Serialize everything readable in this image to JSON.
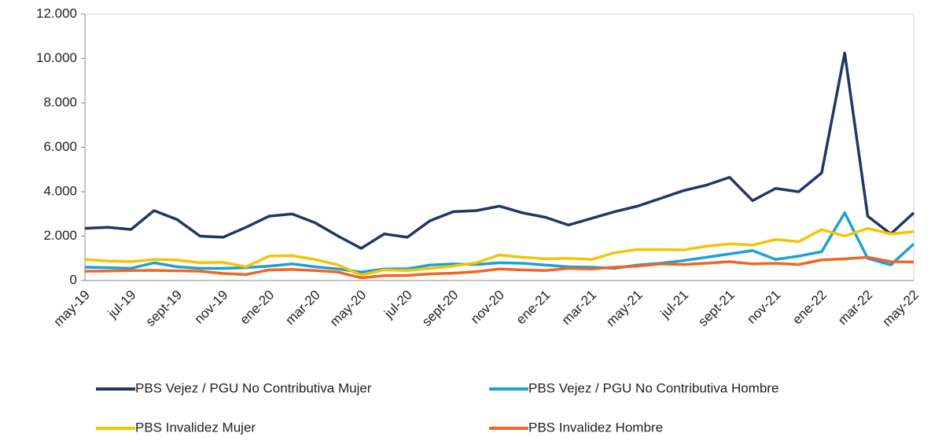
{
  "chart_data": {
    "type": "line",
    "categories": [
      "may-19",
      null,
      "jul-19",
      null,
      "sept-19",
      null,
      "nov-19",
      null,
      "ene-20",
      null,
      "mar-20",
      null,
      "may-20",
      null,
      "jul-20",
      null,
      "sept-20",
      null,
      "nov-20",
      null,
      "ene-21",
      null,
      "mar-21",
      null,
      "may-21",
      null,
      "jul-21",
      null,
      "sept-21",
      null,
      "nov-21",
      null,
      "ene-22",
      null,
      "mar-22",
      null,
      "may-22"
    ],
    "series": [
      {
        "name": "PBS Vejez / PGU No Contributiva Mujer",
        "color": "#1f3864",
        "values": [
          2350,
          2400,
          2300,
          3150,
          2750,
          2000,
          1950,
          2400,
          2900,
          3000,
          2600,
          2000,
          1450,
          2100,
          1950,
          2700,
          3100,
          3150,
          3350,
          3050,
          2850,
          2500,
          2800,
          3100,
          3350,
          3700,
          4050,
          4300,
          4650,
          3600,
          4150,
          4000,
          4850,
          10250,
          2900,
          2100,
          3050
        ]
      },
      {
        "name": "PBS Vejez / PGU No Contributiva Hombre",
        "color": "#1ba1d4",
        "values": [
          600,
          580,
          550,
          800,
          620,
          550,
          550,
          580,
          650,
          750,
          620,
          520,
          380,
          520,
          530,
          700,
          750,
          720,
          800,
          780,
          700,
          620,
          600,
          550,
          700,
          780,
          900,
          1050,
          1200,
          1350,
          950,
          1100,
          1300,
          3050,
          1000,
          700,
          1650
        ]
      },
      {
        "name": "PBS Invalidez Mujer",
        "color": "#f5c400",
        "values": [
          950,
          880,
          850,
          950,
          930,
          800,
          820,
          620,
          1100,
          1120,
          950,
          700,
          250,
          480,
          450,
          550,
          650,
          800,
          1150,
          1050,
          980,
          1000,
          950,
          1250,
          1400,
          1400,
          1380,
          1550,
          1650,
          1600,
          1850,
          1750,
          2300,
          2000,
          2350,
          2100,
          2200
        ]
      },
      {
        "name": "PBS Invalidez Hombre",
        "color": "#f26522",
        "values": [
          420,
          430,
          450,
          460,
          440,
          420,
          320,
          270,
          480,
          500,
          450,
          380,
          120,
          220,
          230,
          300,
          330,
          400,
          520,
          480,
          450,
          550,
          520,
          600,
          650,
          750,
          720,
          780,
          850,
          750,
          780,
          720,
          930,
          980,
          1050,
          850,
          830
        ]
      }
    ],
    "ylim": [
      0,
      12000
    ],
    "yticks": [
      0,
      {
        "value": 2000,
        "label": "2.000"
      },
      {
        "value": 4000,
        "label": "4.000"
      },
      {
        "value": 6000,
        "label": "6.000"
      },
      {
        "value": 8000,
        "label": "8.000"
      },
      {
        "value": 10000,
        "label": "10.000"
      },
      {
        "value": 12000,
        "label": "12.000"
      }
    ],
    "legend": "bottom"
  }
}
